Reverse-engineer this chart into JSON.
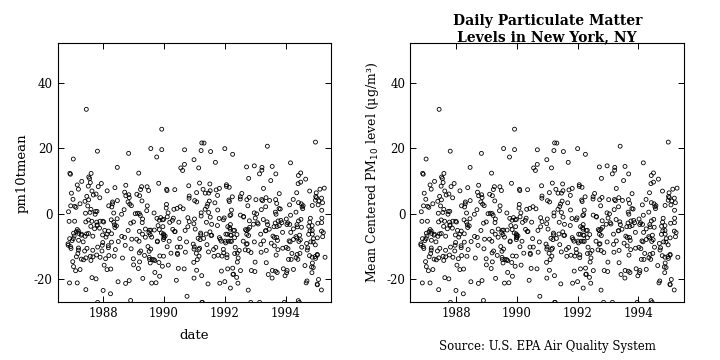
{
  "title": "Daily Particulate Matter\nLevels in New York, NY",
  "left_ylabel": "pm10tmean",
  "right_ylabel": "Mean Centered PM$_{10}$ level (μg/m³)",
  "xlabel_left": "date",
  "xlabel_right": "Source: U.S. EPA Air Quality System",
  "xtick_labels": [
    1988,
    1990,
    1992,
    1994
  ],
  "ytick_labels": [
    -20,
    0,
    20,
    40
  ],
  "ylim": [
    -27,
    52
  ],
  "xlim_start": 1986.5,
  "xlim_end": 1995.5,
  "background_color": "#ffffff",
  "scatter_color": "none",
  "scatter_edgecolor": "#000000",
  "scatter_size": 8,
  "scatter_linewidth": 0.6,
  "seed": 42,
  "n_points": 600
}
